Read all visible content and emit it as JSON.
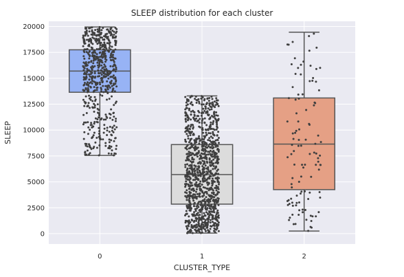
{
  "chart_data": {
    "type": "boxplot",
    "title": "SLEEP distribution for each cluster",
    "xlabel": "CLUSTER_TYPE",
    "ylabel": "SLEEP",
    "ylim": [
      -1000,
      20500
    ],
    "yticks": [
      0,
      2500,
      5000,
      7500,
      10000,
      12500,
      15000,
      17500,
      20000
    ],
    "ytick_labels": [
      "0",
      "2500",
      "5000",
      "7500",
      "10000",
      "12500",
      "15000",
      "17500",
      "20000"
    ],
    "grid": true,
    "background": "#eaeaf2",
    "point_color": "#3f3f3f",
    "line_color": "#555555",
    "categories": [
      "0",
      "1",
      "2"
    ],
    "boxes": [
      {
        "category": "0",
        "color": "#97b3f5",
        "whisker_low": 7550,
        "q1": 13650,
        "median": 15700,
        "q3": 17750,
        "whisker_high": 19950,
        "approx_points": 650
      },
      {
        "category": "1",
        "color": "#dcdcdc",
        "whisker_low": 50,
        "q1": 2850,
        "median": 5700,
        "q3": 8600,
        "whisker_high": 13300,
        "approx_points": 1100
      },
      {
        "category": "2",
        "color": "#e5a085",
        "whisker_low": 250,
        "q1": 4250,
        "median": 8650,
        "q3": 13100,
        "whisker_high": 19450,
        "approx_points": 110
      }
    ]
  }
}
